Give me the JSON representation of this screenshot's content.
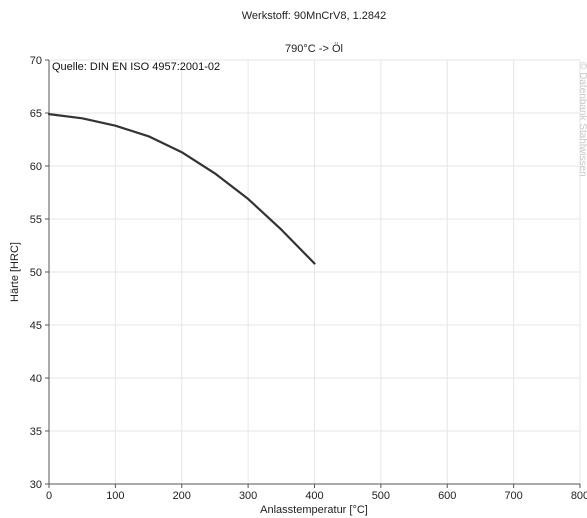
{
  "chart_data": {
    "type": "line",
    "title": "Werkstoff: 90MnCrV8, 1.2842",
    "subtitle": "790°C -> Öl",
    "xlabel": "Anlasstemperatur [°C]",
    "ylabel": "Härte [HRC]",
    "xlim": [
      0,
      800
    ],
    "ylim": [
      30,
      70
    ],
    "xticks": [
      0,
      100,
      200,
      300,
      400,
      500,
      600,
      700,
      800
    ],
    "yticks": [
      30,
      35,
      40,
      45,
      50,
      55,
      60,
      65,
      70
    ],
    "grid": true,
    "legend": "none",
    "annotation": "Quelle: DIN EN ISO 4957:2001-02",
    "watermark": "© Datenbank Stahlwissen",
    "series": [
      {
        "color": "#333333",
        "x": [
          0,
          50,
          100,
          150,
          200,
          250,
          300,
          350,
          400
        ],
        "y": [
          64.9,
          64.5,
          63.8,
          62.8,
          61.3,
          59.3,
          56.9,
          54.0,
          50.8
        ]
      }
    ]
  }
}
